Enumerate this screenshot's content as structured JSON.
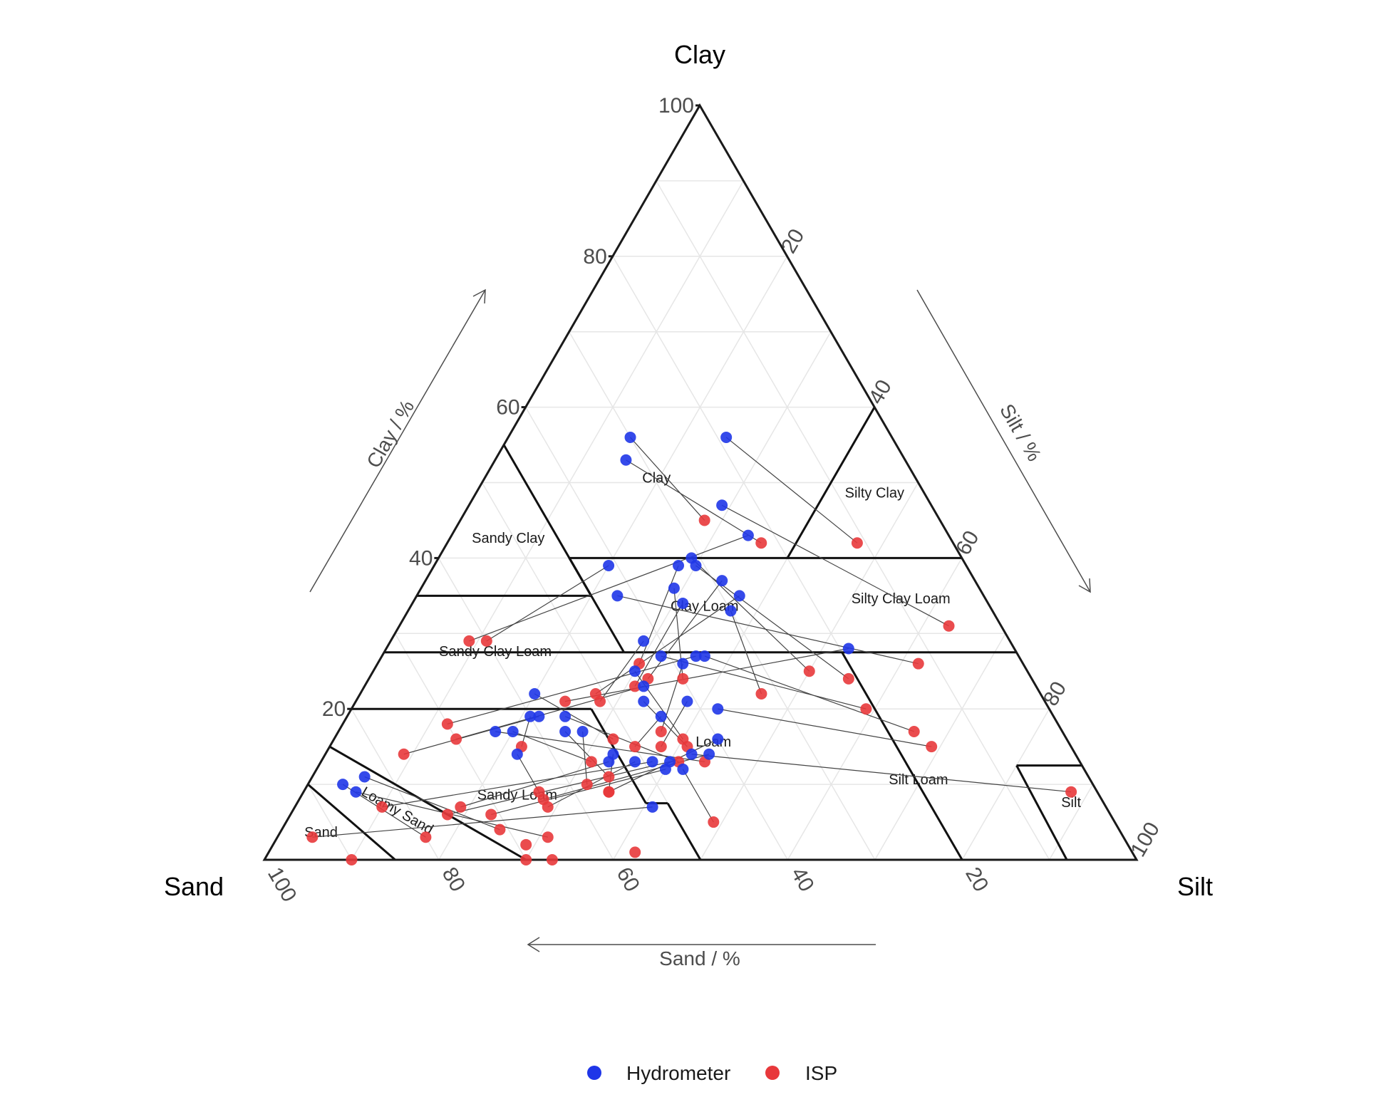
{
  "chart_data": {
    "type": "scatter",
    "subtype": "ternary",
    "corner_labels": {
      "top": "Clay",
      "left": "Sand",
      "right": "Silt"
    },
    "axis_titles": {
      "clay": "Clay / %",
      "silt": "Silt / %",
      "sand": "Sand / %"
    },
    "ticks": {
      "clay": [
        "20",
        "40",
        "60",
        "80",
        "100"
      ],
      "silt": [
        "20",
        "40",
        "60",
        "80",
        "100"
      ],
      "sand": [
        "100",
        "80",
        "60",
        "40",
        "20"
      ]
    },
    "grid": true,
    "legend_position": "bottom",
    "regions": [
      {
        "name": "Clay",
        "sand": 30,
        "silt": 20
      },
      {
        "name": "Sandy Clay",
        "sand": 51,
        "silt": 7
      },
      {
        "name": "Silty Clay",
        "sand": 6,
        "silt": 46
      },
      {
        "name": "Sandy Clay Loam",
        "sand": 60,
        "silt": 13
      },
      {
        "name": "Clay Loam",
        "sand": 33,
        "silt": 34
      },
      {
        "name": "Silty Clay Loam",
        "sand": 10,
        "silt": 56
      },
      {
        "name": "Loam",
        "sand": 41,
        "silt": 44
      },
      {
        "name": "Silt Loam",
        "sand": 20,
        "silt": 70
      },
      {
        "name": "Sandy Loam",
        "sand": 67,
        "silt": 25
      },
      {
        "name": "Loamy Sand",
        "sand": 82,
        "silt": 12
      },
      {
        "name": "Sand",
        "sand": 92,
        "silt": 5
      },
      {
        "name": "Silt",
        "sand": 4,
        "silt": 89
      }
    ],
    "series": [
      {
        "name": "Hydrometer",
        "color": "#1f36e8",
        "points": [
          {
            "clay": 56,
            "sand": 30,
            "silt": 14
          },
          {
            "clay": 53,
            "sand": 32,
            "silt": 15
          },
          {
            "clay": 56,
            "sand": 19,
            "silt": 25
          },
          {
            "clay": 47,
            "sand": 24,
            "silt": 29
          },
          {
            "clay": 43,
            "sand": 23,
            "silt": 34
          },
          {
            "clay": 39,
            "sand": 41,
            "silt": 20
          },
          {
            "clay": 35,
            "sand": 42,
            "silt": 23
          },
          {
            "clay": 39,
            "sand": 33,
            "silt": 28
          },
          {
            "clay": 40,
            "sand": 31,
            "silt": 29
          },
          {
            "clay": 39,
            "sand": 31,
            "silt": 30
          },
          {
            "clay": 37,
            "sand": 29,
            "silt": 34
          },
          {
            "clay": 36,
            "sand": 35,
            "silt": 29
          },
          {
            "clay": 34,
            "sand": 35,
            "silt": 31
          },
          {
            "clay": 35,
            "sand": 28,
            "silt": 37
          },
          {
            "clay": 33,
            "sand": 30,
            "silt": 37
          },
          {
            "clay": 29,
            "sand": 42,
            "silt": 29
          },
          {
            "clay": 28,
            "sand": 19,
            "silt": 53
          },
          {
            "clay": 27,
            "sand": 41,
            "silt": 32
          },
          {
            "clay": 27,
            "sand": 37,
            "silt": 36
          },
          {
            "clay": 27,
            "sand": 36,
            "silt": 37
          },
          {
            "clay": 26,
            "sand": 39,
            "silt": 35
          },
          {
            "clay": 25,
            "sand": 45,
            "silt": 30
          },
          {
            "clay": 23,
            "sand": 45,
            "silt": 32
          },
          {
            "clay": 22,
            "sand": 58,
            "silt": 20
          },
          {
            "clay": 21,
            "sand": 46,
            "silt": 33
          },
          {
            "clay": 21,
            "sand": 41,
            "silt": 38
          },
          {
            "clay": 20,
            "sand": 38,
            "silt": 42
          },
          {
            "clay": 19,
            "sand": 45,
            "silt": 36
          },
          {
            "clay": 19,
            "sand": 60,
            "silt": 21
          },
          {
            "clay": 19,
            "sand": 59,
            "silt": 22
          },
          {
            "clay": 19,
            "sand": 56,
            "silt": 25
          },
          {
            "clay": 17,
            "sand": 65,
            "silt": 18
          },
          {
            "clay": 17,
            "sand": 63,
            "silt": 20
          },
          {
            "clay": 17,
            "sand": 57,
            "silt": 26
          },
          {
            "clay": 17,
            "sand": 55,
            "silt": 28
          },
          {
            "clay": 16,
            "sand": 40,
            "silt": 44
          },
          {
            "clay": 14,
            "sand": 64,
            "silt": 22
          },
          {
            "clay": 14,
            "sand": 53,
            "silt": 33
          },
          {
            "clay": 14,
            "sand": 44,
            "silt": 42
          },
          {
            "clay": 14,
            "sand": 42,
            "silt": 44
          },
          {
            "clay": 13,
            "sand": 54,
            "silt": 33
          },
          {
            "clay": 13,
            "sand": 51,
            "silt": 36
          },
          {
            "clay": 13,
            "sand": 49,
            "silt": 38
          },
          {
            "clay": 13,
            "sand": 47,
            "silt": 40
          },
          {
            "clay": 12,
            "sand": 48,
            "silt": 40
          },
          {
            "clay": 12,
            "sand": 46,
            "silt": 42
          },
          {
            "clay": 11,
            "sand": 83,
            "silt": 6
          },
          {
            "clay": 10,
            "sand": 86,
            "silt": 4
          },
          {
            "clay": 9,
            "sand": 85,
            "silt": 6
          },
          {
            "clay": 7,
            "sand": 52,
            "silt": 41
          }
        ]
      },
      {
        "name": "ISP",
        "color": "#e8383b",
        "points": [
          {
            "clay": 45,
            "sand": 27,
            "silt": 28
          },
          {
            "clay": 42,
            "sand": 22,
            "silt": 36
          },
          {
            "clay": 42,
            "sand": 11,
            "silt": 47
          },
          {
            "clay": 31,
            "sand": 6,
            "silt": 63
          },
          {
            "clay": 29,
            "sand": 62,
            "silt": 9
          },
          {
            "clay": 29,
            "sand": 60,
            "silt": 11
          },
          {
            "clay": 26,
            "sand": 12,
            "silt": 62
          },
          {
            "clay": 26,
            "sand": 44,
            "silt": 30
          },
          {
            "clay": 25,
            "sand": 25,
            "silt": 50
          },
          {
            "clay": 24,
            "sand": 21,
            "silt": 55
          },
          {
            "clay": 24,
            "sand": 44,
            "silt": 32
          },
          {
            "clay": 24,
            "sand": 40,
            "silt": 36
          },
          {
            "clay": 23,
            "sand": 46,
            "silt": 31
          },
          {
            "clay": 22,
            "sand": 51,
            "silt": 27
          },
          {
            "clay": 22,
            "sand": 32,
            "silt": 46
          },
          {
            "clay": 21,
            "sand": 51,
            "silt": 28
          },
          {
            "clay": 21,
            "sand": 55,
            "silt": 24
          },
          {
            "clay": 20,
            "sand": 21,
            "silt": 59
          },
          {
            "clay": 18,
            "sand": 70,
            "silt": 12
          },
          {
            "clay": 17,
            "sand": 17,
            "silt": 66
          },
          {
            "clay": 17,
            "sand": 46,
            "silt": 37
          },
          {
            "clay": 16,
            "sand": 44,
            "silt": 40
          },
          {
            "clay": 16,
            "sand": 70,
            "silt": 14
          },
          {
            "clay": 16,
            "sand": 52,
            "silt": 32
          },
          {
            "clay": 15,
            "sand": 44,
            "silt": 41
          },
          {
            "clay": 15,
            "sand": 47,
            "silt": 38
          },
          {
            "clay": 15,
            "sand": 16,
            "silt": 69
          },
          {
            "clay": 15,
            "sand": 50,
            "silt": 35
          },
          {
            "clay": 15,
            "sand": 63,
            "silt": 22
          },
          {
            "clay": 14,
            "sand": 77,
            "silt": 9
          },
          {
            "clay": 13,
            "sand": 46,
            "silt": 41
          },
          {
            "clay": 13,
            "sand": 43,
            "silt": 44
          },
          {
            "clay": 13,
            "sand": 56,
            "silt": 31
          },
          {
            "clay": 11,
            "sand": 55,
            "silt": 34
          },
          {
            "clay": 10,
            "sand": 58,
            "silt": 32
          },
          {
            "clay": 9,
            "sand": 56,
            "silt": 35
          },
          {
            "clay": 9,
            "sand": 64,
            "silt": 27
          },
          {
            "clay": 9,
            "sand": 56,
            "silt": 35
          },
          {
            "clay": 9,
            "sand": 3,
            "silt": 88
          },
          {
            "clay": 8,
            "sand": 64,
            "silt": 28
          },
          {
            "clay": 7,
            "sand": 74,
            "silt": 19
          },
          {
            "clay": 7,
            "sand": 64,
            "silt": 29
          },
          {
            "clay": 7,
            "sand": 83,
            "silt": 10
          },
          {
            "clay": 6,
            "sand": 76,
            "silt": 18
          },
          {
            "clay": 6,
            "sand": 71,
            "silt": 23
          },
          {
            "clay": 5,
            "sand": 46,
            "silt": 49
          },
          {
            "clay": 4,
            "sand": 71,
            "silt": 25
          },
          {
            "clay": 3,
            "sand": 80,
            "silt": 17
          },
          {
            "clay": 3,
            "sand": 66,
            "silt": 31
          },
          {
            "clay": 3,
            "sand": 93,
            "silt": 4
          },
          {
            "clay": 2,
            "sand": 69,
            "silt": 29
          },
          {
            "clay": 1,
            "sand": 57,
            "silt": 42
          },
          {
            "clay": 0,
            "sand": 90,
            "silt": 10
          },
          {
            "clay": 0,
            "sand": 70,
            "silt": 30
          },
          {
            "clay": 0,
            "sand": 67,
            "silt": 33
          }
        ]
      }
    ],
    "pairs": [
      [
        0,
        0
      ],
      [
        1,
        1
      ],
      [
        2,
        2
      ],
      [
        3,
        3
      ],
      [
        4,
        4
      ],
      [
        5,
        5
      ],
      [
        6,
        6
      ],
      [
        7,
        7
      ],
      [
        8,
        8
      ],
      [
        9,
        9
      ],
      [
        10,
        10
      ],
      [
        11,
        11
      ],
      [
        12,
        12
      ],
      [
        13,
        13
      ],
      [
        14,
        14
      ],
      [
        15,
        15
      ],
      [
        16,
        16
      ],
      [
        17,
        17
      ],
      [
        18,
        18
      ],
      [
        19,
        19
      ],
      [
        20,
        20
      ],
      [
        21,
        21
      ],
      [
        22,
        22
      ],
      [
        23,
        23
      ],
      [
        24,
        24
      ],
      [
        25,
        25
      ],
      [
        26,
        26
      ],
      [
        27,
        27
      ],
      [
        28,
        28
      ],
      [
        29,
        29
      ],
      [
        30,
        30
      ],
      [
        31,
        31
      ],
      [
        32,
        32
      ],
      [
        33,
        33
      ],
      [
        34,
        34
      ],
      [
        35,
        35
      ],
      [
        36,
        36
      ],
      [
        37,
        37
      ],
      [
        38,
        38
      ],
      [
        39,
        39
      ],
      [
        40,
        40
      ],
      [
        41,
        41
      ],
      [
        42,
        42
      ],
      [
        43,
        43
      ],
      [
        44,
        44
      ],
      [
        45,
        45
      ],
      [
        46,
        46
      ],
      [
        47,
        47
      ],
      [
        48,
        48
      ],
      [
        49,
        49
      ]
    ]
  }
}
